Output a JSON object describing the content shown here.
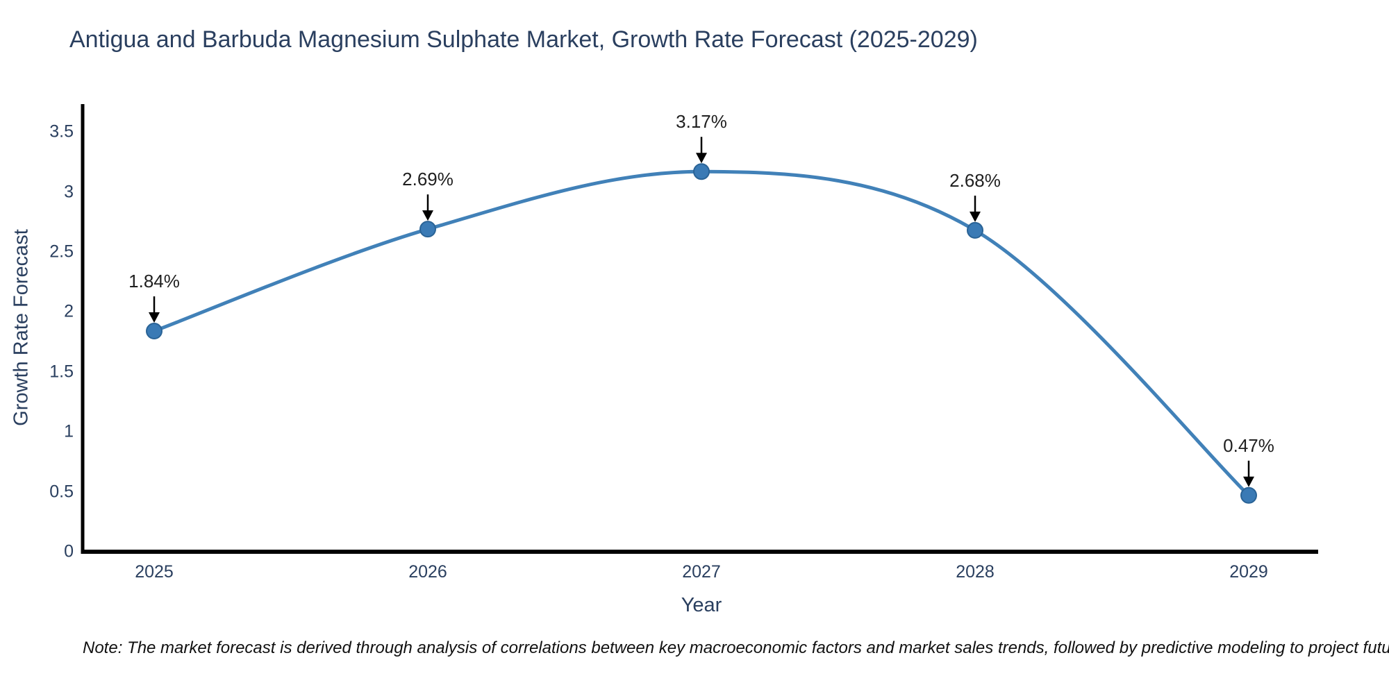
{
  "title": "Antigua and Barbuda Magnesium Sulphate Market, Growth Rate Forecast (2025-2029)",
  "x_axis": {
    "title": "Year",
    "ticks": [
      "2025",
      "2026",
      "2027",
      "2028",
      "2029"
    ]
  },
  "y_axis": {
    "title": "Growth Rate Forecast",
    "ticks": [
      "0",
      "0.5",
      "1",
      "1.5",
      "2",
      "2.5",
      "3",
      "3.5"
    ]
  },
  "chart_data": {
    "type": "line",
    "title": "Antigua and Barbuda Magnesium Sulphate Market, Growth Rate Forecast (2025-2029)",
    "xlabel": "Year",
    "ylabel": "Growth Rate Forecast",
    "x": [
      2025,
      2026,
      2027,
      2028,
      2029
    ],
    "series": [
      {
        "name": "Growth Rate Forecast",
        "values": [
          1.84,
          2.69,
          3.17,
          2.68,
          0.47
        ]
      }
    ],
    "annotations": [
      "1.84%",
      "2.69%",
      "3.17%",
      "2.68%",
      "0.47%"
    ],
    "ylim": [
      0,
      3.5
    ],
    "line_shape": "spline",
    "grid": false,
    "legend": false
  },
  "note": "Note: The market forecast is derived through analysis of correlations between key macroeconomic factors and market sales trends, followed by predictive modeling to project future sales",
  "colors": {
    "line": "#4181b8",
    "marker_fill": "#3a7ab5",
    "marker_edge": "#2a6396",
    "axis": "#000000",
    "tick_text": "#2a3f5f",
    "annotation_text": "#1f1f1f",
    "arrow": "#000000"
  }
}
